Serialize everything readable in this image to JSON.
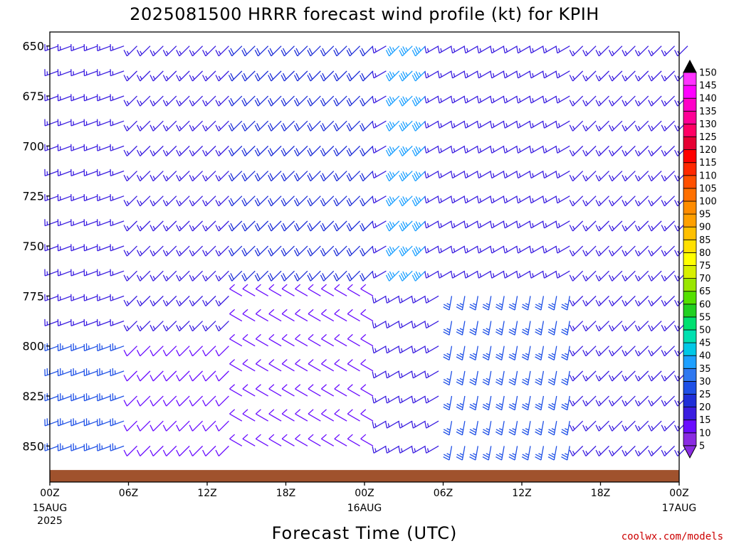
{
  "title": "2025081500 HRRR forecast wind profile (kt) for KPIH",
  "x_axis_title": "Forecast Time (UTC)",
  "credit": "coolwx.com/models",
  "x_ticks": [
    {
      "label": "00Z",
      "hour": 0,
      "sub": [
        "15AUG",
        "2025"
      ]
    },
    {
      "label": "06Z",
      "hour": 6,
      "sub": []
    },
    {
      "label": "12Z",
      "hour": 12,
      "sub": []
    },
    {
      "label": "18Z",
      "hour": 18,
      "sub": []
    },
    {
      "label": "00Z",
      "hour": 24,
      "sub": [
        "16AUG"
      ]
    },
    {
      "label": "06Z",
      "hour": 30,
      "sub": []
    },
    {
      "label": "12Z",
      "hour": 36,
      "sub": []
    },
    {
      "label": "18Z",
      "hour": 42,
      "sub": []
    },
    {
      "label": "00Z",
      "hour": 48,
      "sub": [
        "17AUG"
      ]
    }
  ],
  "y_ticks": [
    650,
    675,
    700,
    725,
    750,
    775,
    800,
    825,
    850
  ],
  "colorbar": {
    "levels": [
      5,
      10,
      15,
      20,
      25,
      30,
      35,
      40,
      45,
      50,
      55,
      60,
      65,
      70,
      75,
      80,
      85,
      90,
      95,
      100,
      105,
      110,
      115,
      120,
      125,
      130,
      135,
      140,
      145,
      150
    ],
    "colors": [
      "#8a2be2",
      "#6a0dff",
      "#3b1ee0",
      "#1f2fd8",
      "#1e50e6",
      "#2f78f0",
      "#1ea0ff",
      "#00c8e6",
      "#00e0b0",
      "#00e070",
      "#22d022",
      "#55e000",
      "#9ae600",
      "#d8f000",
      "#ffff00",
      "#ffe000",
      "#ffc000",
      "#ffa000",
      "#ff8c00",
      "#ff7000",
      "#ff5000",
      "#ff2800",
      "#ff0000",
      "#e60032",
      "#ff0064",
      "#ff0096",
      "#ff00c8",
      "#ff00ff",
      "#ff33ff"
    ]
  },
  "chart_data": {
    "type": "wind_barb_profile",
    "title": "2025081500 HRRR forecast wind profile (kt) for KPIH",
    "xlabel": "Forecast Time (UTC)",
    "ylabel": "",
    "x_range_hours": [
      0,
      48
    ],
    "y_range_hPa": [
      643,
      868
    ],
    "y_inverted": true,
    "barb_interval_hours": 1,
    "pressure_step_hPa": 12.5,
    "terrain_pressure_hPa": 862,
    "terrain_color": "#a0522d",
    "wind_regimes": [
      {
        "hours": [
          0,
          6
        ],
        "levels": "all",
        "direction_deg": 250,
        "speed_kt": 15,
        "near_surface_speed_kt": 25
      },
      {
        "hours": [
          6,
          13
        ],
        "levels": "all",
        "direction_deg": 225,
        "speed_kt": 15,
        "near_surface_speed_kt": 10
      },
      {
        "hours": [
          14,
          24
        ],
        "levels": "upper",
        "direction_deg": 225,
        "speed_kt": 20
      },
      {
        "hours": [
          14,
          24
        ],
        "levels": "lower",
        "direction_deg": 300,
        "speed_kt": 10
      },
      {
        "hours": [
          26,
          28
        ],
        "levels": "upper",
        "direction_deg": 225,
        "speed_kt": 35
      },
      {
        "hours": [
          30,
          40
        ],
        "levels": "lower",
        "direction_deg": 190,
        "speed_kt": 25
      },
      {
        "hours": [
          40,
          48
        ],
        "levels": "all",
        "direction_deg": 225,
        "speed_kt": 15
      }
    ]
  }
}
